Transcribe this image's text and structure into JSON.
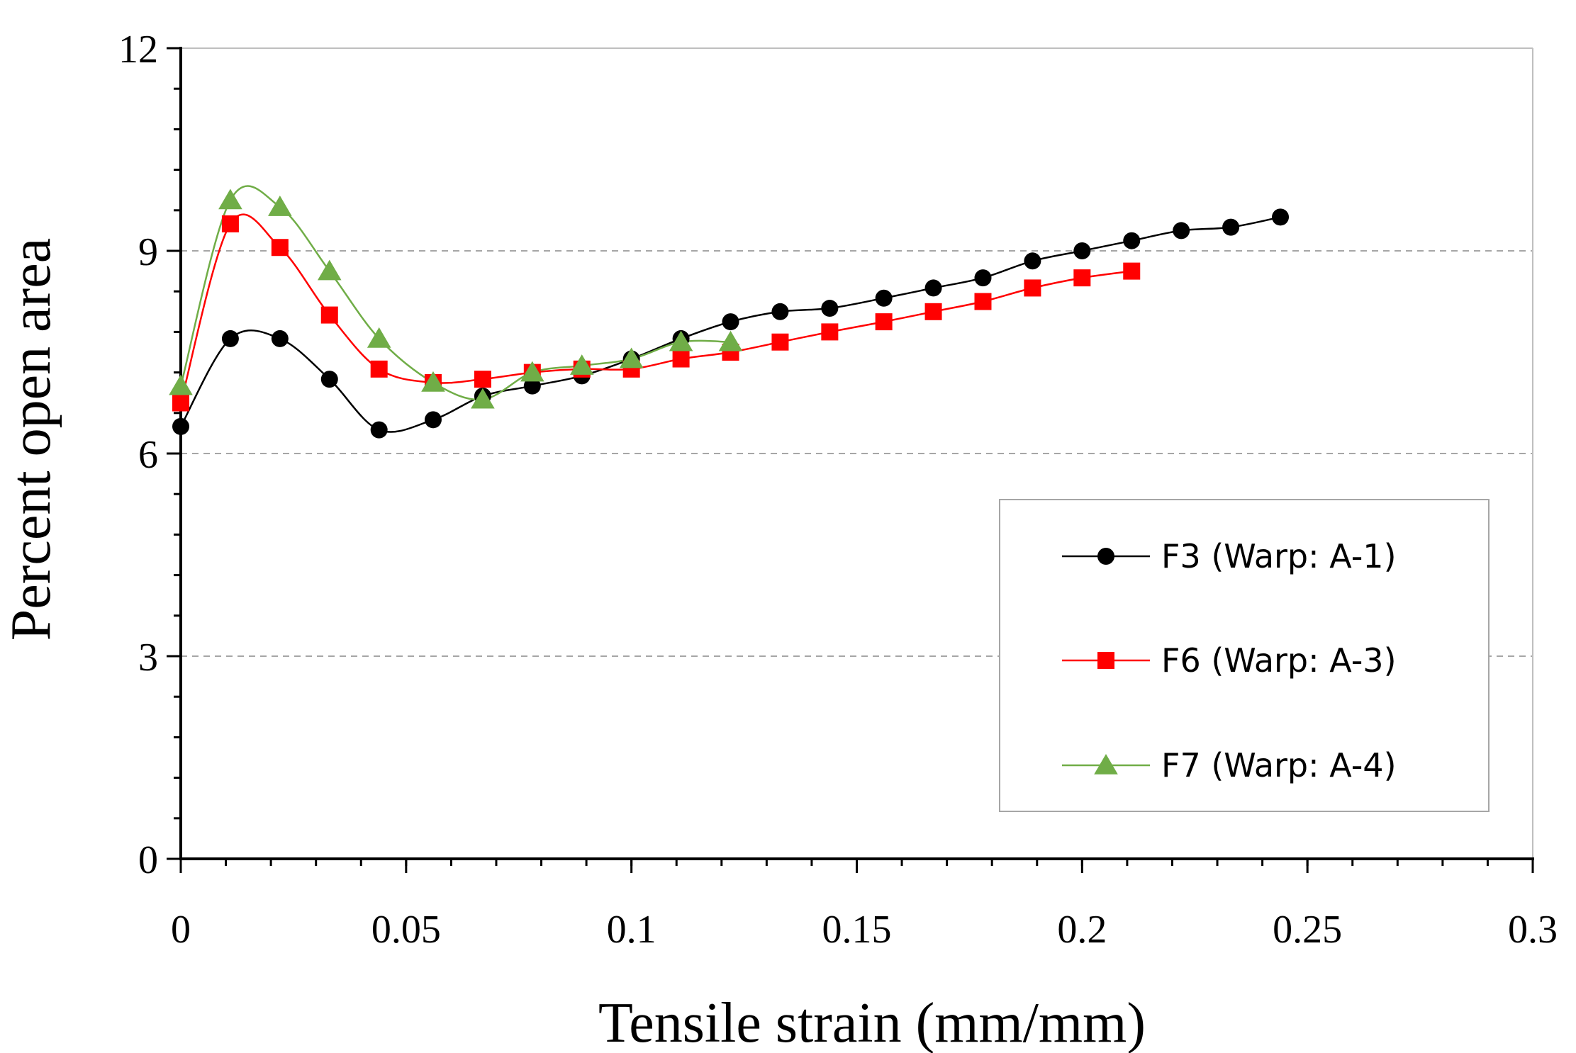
{
  "chart_data": {
    "type": "line",
    "xlabel": "Tensile strain (mm/mm)",
    "ylabel": "Percent open area",
    "xlim": [
      0,
      0.3
    ],
    "ylim": [
      0,
      12
    ],
    "x_ticks": [
      "0",
      "0.05",
      "0.1",
      "0.15",
      "0.2",
      "0.25",
      "0.3"
    ],
    "y_ticks": [
      "0",
      "3",
      "6",
      "9",
      "12"
    ],
    "x_minor_step": 0.01,
    "y_minor_step": 0.6,
    "grid": "horizontal dashed at major y ticks",
    "legend_position": "lower-right",
    "series": [
      {
        "name": "F3 (Warp: A-1)",
        "color": "#000000",
        "marker": "circle",
        "x": [
          0,
          0.011,
          0.022,
          0.033,
          0.044,
          0.056,
          0.067,
          0.078,
          0.089,
          0.1,
          0.111,
          0.122,
          0.133,
          0.144,
          0.156,
          0.167,
          0.178,
          0.189,
          0.2,
          0.211,
          0.222,
          0.233,
          0.244
        ],
        "y": [
          6.4,
          7.7,
          7.7,
          7.1,
          6.35,
          6.5,
          6.85,
          7.0,
          7.15,
          7.4,
          7.7,
          7.95,
          8.1,
          8.15,
          8.3,
          8.45,
          8.6,
          8.85,
          9.0,
          9.15,
          9.3,
          9.35,
          9.5
        ]
      },
      {
        "name": "F6 (Warp: A-3)",
        "color": "#ff0000",
        "marker": "square",
        "x": [
          0,
          0.011,
          0.022,
          0.033,
          0.044,
          0.056,
          0.067,
          0.078,
          0.089,
          0.1,
          0.111,
          0.122,
          0.133,
          0.144,
          0.156,
          0.167,
          0.178,
          0.189,
          0.2,
          0.211
        ],
        "y": [
          6.75,
          9.4,
          9.05,
          8.05,
          7.25,
          7.05,
          7.1,
          7.2,
          7.25,
          7.25,
          7.4,
          7.5,
          7.65,
          7.8,
          7.95,
          8.1,
          8.25,
          8.45,
          8.6,
          8.7
        ]
      },
      {
        "name": "F7 (Warp: A-4)",
        "color": "#70ad47",
        "marker": "triangle",
        "x": [
          0,
          0.011,
          0.022,
          0.033,
          0.044,
          0.056,
          0.067,
          0.078,
          0.089,
          0.1,
          0.111,
          0.122
        ],
        "y": [
          7.0,
          9.75,
          9.65,
          8.7,
          7.7,
          7.05,
          6.8,
          7.2,
          7.3,
          7.4,
          7.65,
          7.65
        ]
      }
    ]
  }
}
